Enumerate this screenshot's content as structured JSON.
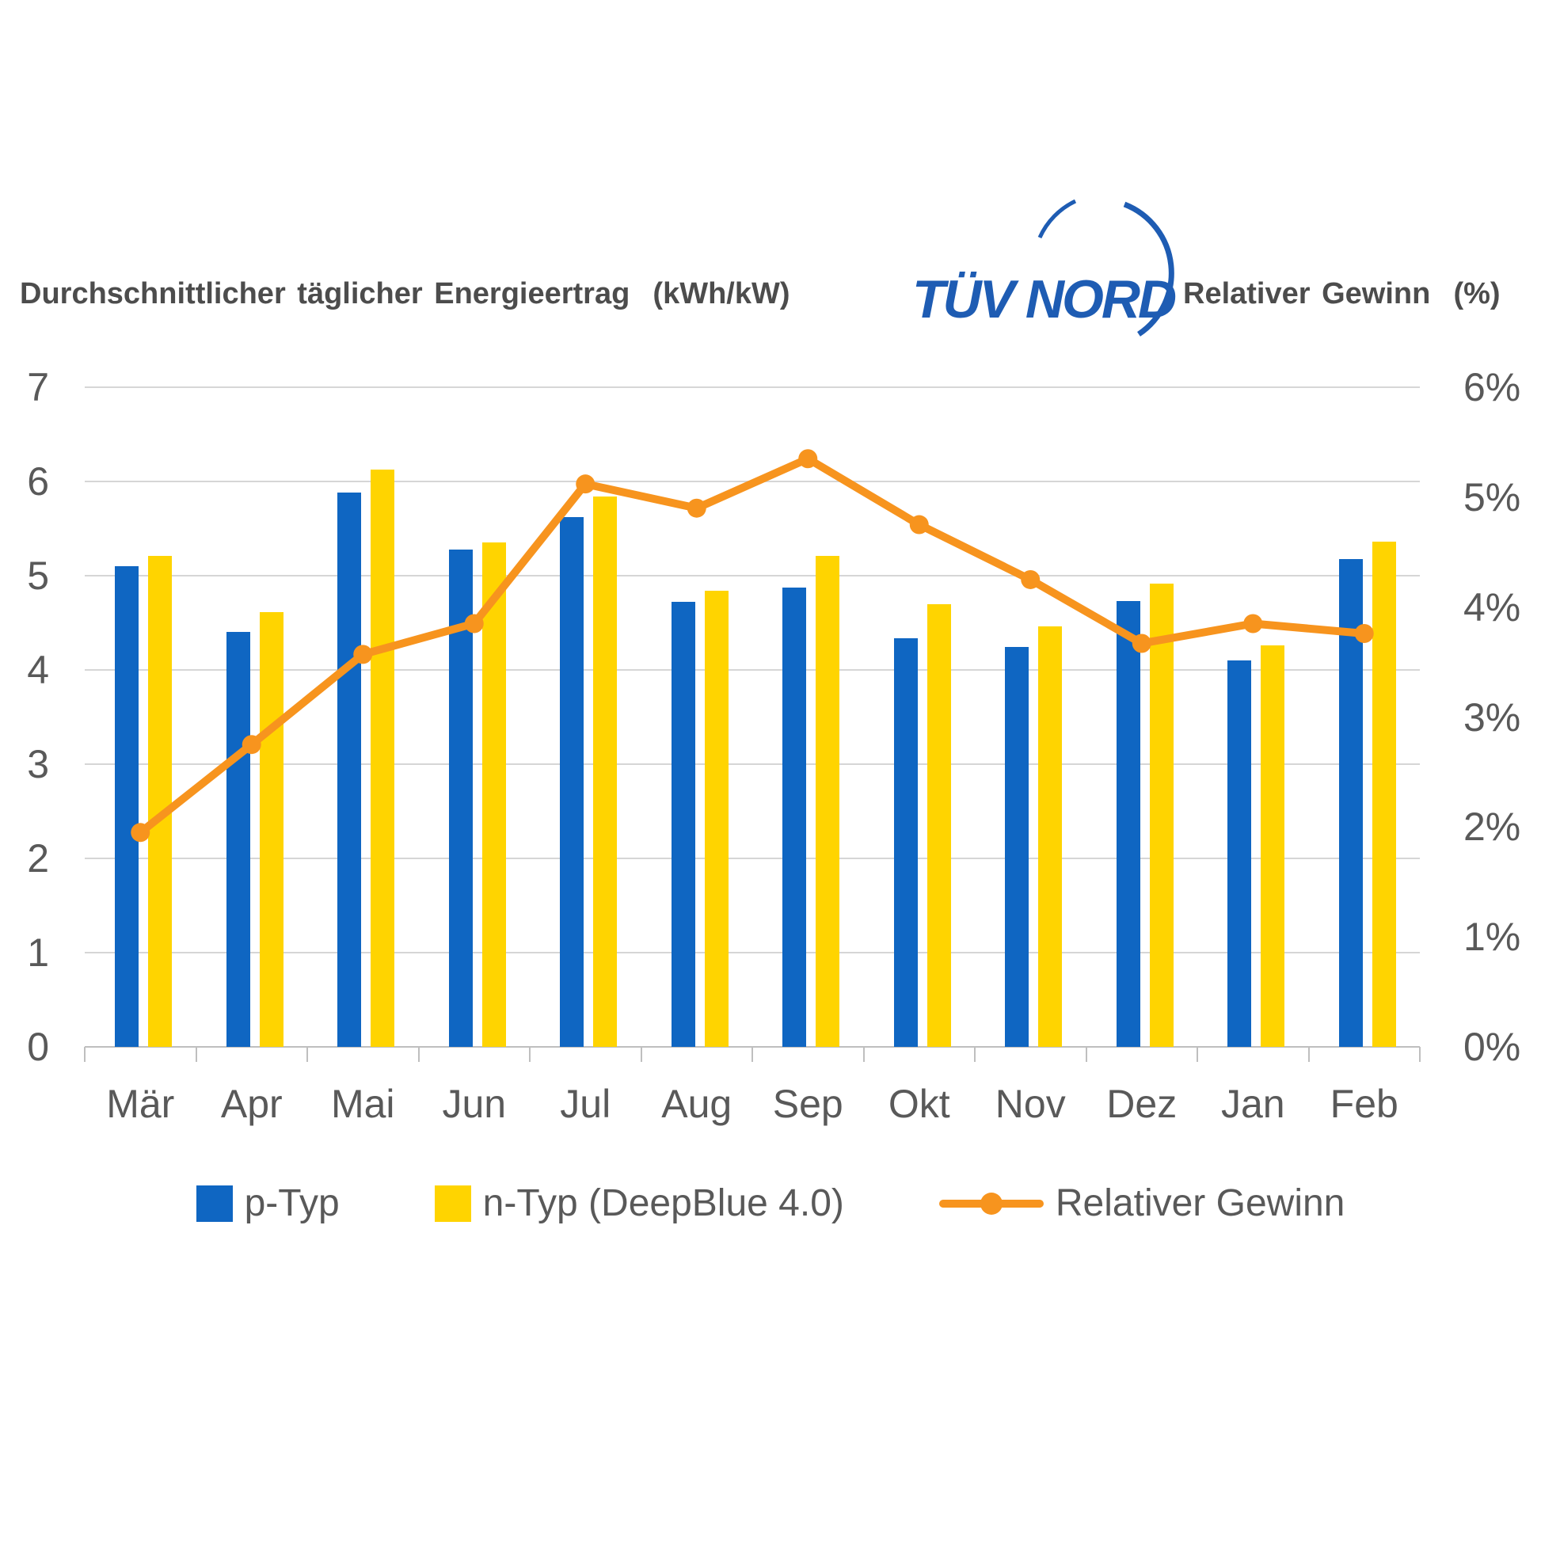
{
  "titles": {
    "left": "Durchschnittlicher täglicher Energieertrag  (kWh/kW)",
    "right": "Relativer Gewinn  (%)"
  },
  "logo": {
    "text": "TÜV NORD"
  },
  "legend": {
    "items": [
      {
        "label": "p-Typ"
      },
      {
        "label": "n-Typ (DeepBlue 4.0)"
      },
      {
        "label": "Relativer Gewinn"
      }
    ]
  },
  "colors": {
    "bar_blue": "#0F66C2",
    "bar_yellow": "#FFD400",
    "line_orange": "#F7941E",
    "logo_blue": "#1E5CB3",
    "text_gray": "#595959",
    "title_gray": "#4C4C4C",
    "grid": "#D6D6D6",
    "axis": "#BFBFBF"
  },
  "chart_data": {
    "type": "bar",
    "subtype": "grouped bars with secondary-axis line",
    "title_left_axis": "Durchschnittlicher täglicher Energieertrag (kWh/kW)",
    "title_right_axis": "Relativer Gewinn (%)",
    "categories": [
      "Mär",
      "Apr",
      "Mai",
      "Jun",
      "Jul",
      "Aug",
      "Sep",
      "Okt",
      "Nov",
      "Dez",
      "Jan",
      "Feb"
    ],
    "series": [
      {
        "name": "p-Typ",
        "type": "bar",
        "axis": "left",
        "values": [
          5.1,
          4.4,
          5.88,
          5.28,
          5.62,
          4.72,
          4.87,
          4.34,
          4.24,
          4.73,
          4.1,
          5.18
        ]
      },
      {
        "name": "n-Typ (DeepBlue 4.0)",
        "type": "bar",
        "axis": "left",
        "values": [
          5.21,
          4.61,
          6.13,
          5.35,
          5.84,
          4.84,
          5.21,
          4.7,
          4.46,
          4.92,
          4.26,
          5.36
        ]
      },
      {
        "name": "Relativer Gewinn",
        "type": "line",
        "axis": "right",
        "values_percent": [
          1.95,
          2.75,
          3.57,
          3.85,
          5.12,
          4.9,
          5.35,
          4.75,
          4.25,
          3.67,
          3.85,
          3.76
        ]
      }
    ],
    "left_axis": {
      "min": 0,
      "max": 7,
      "tick_labels": [
        "0",
        "1",
        "2",
        "3",
        "4",
        "5",
        "6",
        "7"
      ]
    },
    "right_axis": {
      "min": 0,
      "max": 6,
      "tick_labels": [
        "0%",
        "1%",
        "2%",
        "3%",
        "4%",
        "5%",
        "6%"
      ]
    },
    "grid": "horizontal gridlines on left-axis integers",
    "legend_position": "bottom"
  }
}
